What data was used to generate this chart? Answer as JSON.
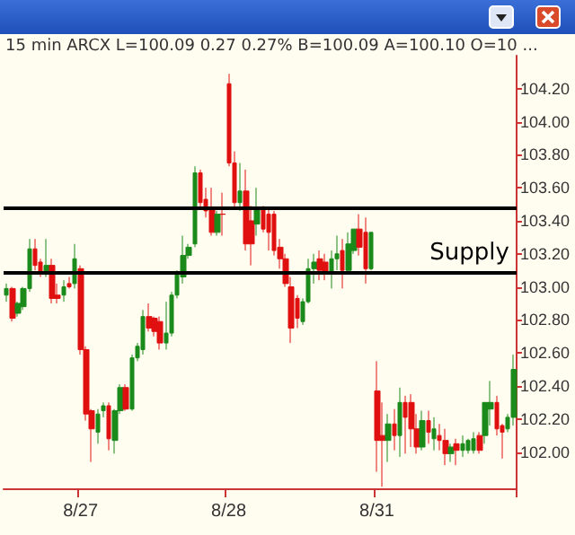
{
  "chart_data": {
    "type": "candlestick",
    "subtitle": "15 min  ARCX  L=100.09  0.27  0.27%  B=100.09  A=100.10  O=10 ...",
    "categories": [
      null,
      null,
      null,
      null,
      null,
      null,
      null,
      null,
      null,
      null,
      null,
      null,
      null,
      "8/27",
      null,
      null,
      null,
      null,
      null,
      null,
      null,
      null,
      null,
      null,
      null,
      null,
      null,
      null,
      null,
      null,
      null,
      null,
      null,
      null,
      null,
      null,
      null,
      null,
      null,
      "8/28",
      null,
      null,
      null,
      null,
      null,
      null,
      null,
      null,
      null,
      null,
      null,
      null,
      null,
      null,
      null,
      null,
      null,
      null,
      null,
      null,
      null,
      null,
      null,
      null,
      null,
      "8/31",
      null,
      null,
      null,
      null,
      null,
      null,
      null,
      null,
      null,
      null,
      null,
      null,
      null,
      null,
      null,
      null,
      null,
      null,
      null,
      null,
      null,
      null,
      null,
      null
    ],
    "ohlc": [
      [
        102.95,
        103.02,
        102.91,
        102.99
      ],
      [
        102.99,
        103.0,
        102.79,
        102.81
      ],
      [
        102.84,
        102.91,
        102.82,
        102.9
      ],
      [
        102.88,
        103.0,
        102.86,
        102.99
      ],
      [
        102.99,
        103.29,
        102.97,
        103.23
      ],
      [
        103.23,
        103.29,
        103.1,
        103.13
      ],
      [
        103.15,
        103.17,
        103.06,
        103.08
      ],
      [
        103.08,
        103.29,
        103.06,
        103.13
      ],
      [
        103.13,
        103.17,
        102.9,
        102.93
      ],
      [
        102.95,
        103.02,
        102.9,
        102.93
      ],
      [
        102.95,
        103.04,
        102.91,
        103.0
      ],
      [
        103.02,
        103.06,
        102.99,
        103.0
      ],
      [
        103.02,
        103.26,
        102.99,
        103.17
      ],
      [
        103.11,
        103.13,
        102.59,
        102.62
      ],
      [
        102.62,
        102.64,
        102.19,
        102.23
      ],
      [
        102.25,
        102.26,
        101.94,
        102.14
      ],
      [
        102.12,
        102.26,
        102.05,
        102.23
      ],
      [
        102.25,
        102.3,
        102.21,
        102.28
      ],
      [
        102.28,
        102.3,
        102.01,
        102.08
      ],
      [
        102.07,
        102.26,
        101.99,
        102.25
      ],
      [
        102.25,
        102.41,
        102.23,
        102.39
      ],
      [
        102.39,
        102.41,
        102.25,
        102.26
      ],
      [
        102.26,
        102.59,
        102.25,
        102.57
      ],
      [
        102.57,
        102.66,
        102.55,
        102.64
      ],
      [
        102.62,
        102.86,
        102.59,
        102.82
      ],
      [
        102.82,
        102.9,
        102.73,
        102.75
      ],
      [
        102.81,
        102.82,
        102.7,
        102.73
      ],
      [
        102.79,
        102.82,
        102.62,
        102.66
      ],
      [
        102.66,
        102.91,
        102.62,
        102.72
      ],
      [
        102.72,
        102.97,
        102.7,
        102.95
      ],
      [
        102.95,
        103.1,
        102.93,
        103.08
      ],
      [
        103.06,
        103.31,
        103.02,
        103.19
      ],
      [
        103.19,
        103.26,
        103.17,
        103.24
      ],
      [
        103.26,
        103.73,
        103.24,
        103.69
      ],
      [
        103.69,
        103.71,
        103.47,
        103.51
      ],
      [
        103.53,
        103.6,
        103.42,
        103.46
      ],
      [
        103.47,
        103.6,
        103.31,
        103.33
      ],
      [
        103.33,
        103.46,
        103.31,
        103.44
      ],
      [
        103.44,
        103.57,
        103.31,
        103.44
      ],
      [
        104.23,
        104.29,
        103.73,
        103.75
      ],
      [
        103.75,
        103.82,
        103.47,
        103.51
      ],
      [
        103.51,
        103.75,
        103.46,
        103.58
      ],
      [
        103.58,
        103.71,
        103.22,
        103.26
      ],
      [
        103.4,
        103.49,
        103.13,
        103.26
      ],
      [
        103.38,
        103.6,
        103.31,
        103.47
      ],
      [
        103.47,
        103.49,
        103.33,
        103.35
      ],
      [
        103.44,
        103.47,
        103.22,
        103.33
      ],
      [
        103.44,
        103.46,
        103.19,
        103.22
      ],
      [
        103.24,
        103.29,
        103.11,
        103.17
      ],
      [
        103.17,
        103.2,
        103.0,
        103.02
      ],
      [
        103.0,
        103.06,
        102.66,
        102.75
      ],
      [
        102.93,
        102.95,
        102.75,
        102.81
      ],
      [
        102.79,
        102.93,
        102.77,
        102.91
      ],
      [
        102.91,
        103.17,
        102.9,
        103.11
      ],
      [
        103.11,
        103.2,
        103.02,
        103.15
      ],
      [
        103.17,
        103.22,
        103.04,
        103.1
      ],
      [
        103.15,
        103.2,
        103.04,
        103.08
      ],
      [
        103.08,
        103.22,
        102.99,
        103.17
      ],
      [
        103.17,
        103.31,
        103.1,
        103.2
      ],
      [
        103.22,
        103.29,
        102.99,
        103.1
      ],
      [
        103.1,
        103.33,
        103.08,
        103.26
      ],
      [
        103.22,
        103.35,
        103.2,
        103.35
      ],
      [
        103.35,
        103.44,
        103.19,
        103.24
      ],
      [
        103.33,
        103.42,
        103.02,
        103.11
      ],
      [
        103.11,
        103.33,
        103.1,
        103.33
      ],
      [
        102.37,
        102.55,
        101.88,
        102.07
      ],
      [
        102.1,
        102.3,
        101.79,
        102.07
      ],
      [
        102.07,
        102.23,
        101.94,
        102.17
      ],
      [
        102.17,
        102.26,
        102.01,
        102.1
      ],
      [
        102.1,
        102.39,
        101.97,
        102.3
      ],
      [
        102.3,
        102.34,
        101.99,
        102.21
      ],
      [
        102.3,
        102.35,
        102.03,
        102.14
      ],
      [
        102.14,
        102.23,
        101.99,
        102.03
      ],
      [
        102.03,
        102.25,
        102.01,
        102.19
      ],
      [
        102.19,
        102.25,
        102.05,
        102.12
      ],
      [
        102.08,
        102.21,
        102.01,
        102.14
      ],
      [
        102.1,
        102.17,
        102.01,
        102.07
      ],
      [
        102.07,
        102.14,
        101.92,
        101.99
      ],
      [
        101.99,
        102.05,
        101.94,
        102.03
      ],
      [
        102.05,
        102.08,
        101.92,
        102.01
      ],
      [
        102.01,
        102.1,
        101.97,
        102.05
      ],
      [
        102.01,
        102.08,
        101.99,
        102.07
      ],
      [
        102.01,
        102.12,
        101.99,
        102.08
      ],
      [
        102.1,
        102.12,
        101.99,
        102.01
      ],
      [
        102.1,
        102.3,
        102.05,
        102.3
      ],
      [
        102.26,
        102.43,
        102.16,
        102.3
      ],
      [
        102.3,
        102.34,
        102.1,
        102.14
      ],
      [
        102.16,
        102.17,
        101.96,
        102.12
      ],
      [
        102.14,
        102.23,
        102.12,
        102.21
      ],
      [
        102.21,
        102.59,
        102.16,
        102.5
      ]
    ],
    "colors": [
      "#1a8a1a",
      "#e01010",
      "#1a8a1a",
      "#1a8a1a",
      "#1a8a1a",
      "#e01010",
      "#e01010",
      "#1a8a1a",
      "#e01010",
      "#e01010",
      "#1a8a1a",
      "#e01010",
      "#1a8a1a",
      "#e01010",
      "#e01010",
      "#e01010",
      "#1a8a1a",
      "#1a8a1a",
      "#e01010",
      "#1a8a1a",
      "#1a8a1a",
      "#e01010",
      "#1a8a1a",
      "#1a8a1a",
      "#1a8a1a",
      "#e01010",
      "#e01010",
      "#e01010",
      "#1a8a1a",
      "#1a8a1a",
      "#1a8a1a",
      "#1a8a1a",
      "#1a8a1a",
      "#1a8a1a",
      "#e01010",
      "#e01010",
      "#e01010",
      "#1a8a1a",
      "#e01010",
      "#e01010",
      "#e01010",
      "#1a8a1a",
      "#e01010",
      "#e01010",
      "#1a8a1a",
      "#e01010",
      "#e01010",
      "#e01010",
      "#e01010",
      "#e01010",
      "#e01010",
      "#e01010",
      "#1a8a1a",
      "#1a8a1a",
      "#1a8a1a",
      "#e01010",
      "#e01010",
      "#1a8a1a",
      "#1a8a1a",
      "#e01010",
      "#1a8a1a",
      "#1a8a1a",
      "#e01010",
      "#e01010",
      "#1a8a1a",
      "#e01010",
      "#e01010",
      "#1a8a1a",
      "#e01010",
      "#1a8a1a",
      "#e01010",
      "#e01010",
      "#e01010",
      "#1a8a1a",
      "#e01010",
      "#1a8a1a",
      "#e01010",
      "#e01010",
      "#1a8a1a",
      "#e01010",
      "#1a8a1a",
      "#1a8a1a",
      "#1a8a1a",
      "#e01010",
      "#1a8a1a",
      "#1a8a1a",
      "#e01010",
      "#e01010",
      "#1a8a1a",
      "#1a8a1a"
    ],
    "ylim": [
      101.78,
      104.4
    ],
    "yticks": [
      {
        "value": 102,
        "label": "102.00"
      },
      {
        "value": 102.2,
        "label": "102.20"
      },
      {
        "value": 102.4,
        "label": "102.40"
      },
      {
        "value": 102.6,
        "label": "102.60"
      },
      {
        "value": 102.8,
        "label": "102.80"
      },
      {
        "value": 103,
        "label": "103.00"
      },
      {
        "value": 103.2,
        "label": "103.20"
      },
      {
        "value": 103.4,
        "label": "103.40"
      },
      {
        "value": 103.6,
        "label": "103.60"
      },
      {
        "value": 103.8,
        "label": "103.80"
      },
      {
        "value": 104,
        "label": "104.00"
      },
      {
        "value": 104.2,
        "label": "104.20"
      }
    ],
    "ref_lines": [
      {
        "axis": "y",
        "value": 103.48,
        "label": null,
        "color": "#000000"
      },
      {
        "axis": "y",
        "value": 103.09,
        "label": "Supply",
        "color": "#000000"
      }
    ],
    "grid": false
  }
}
